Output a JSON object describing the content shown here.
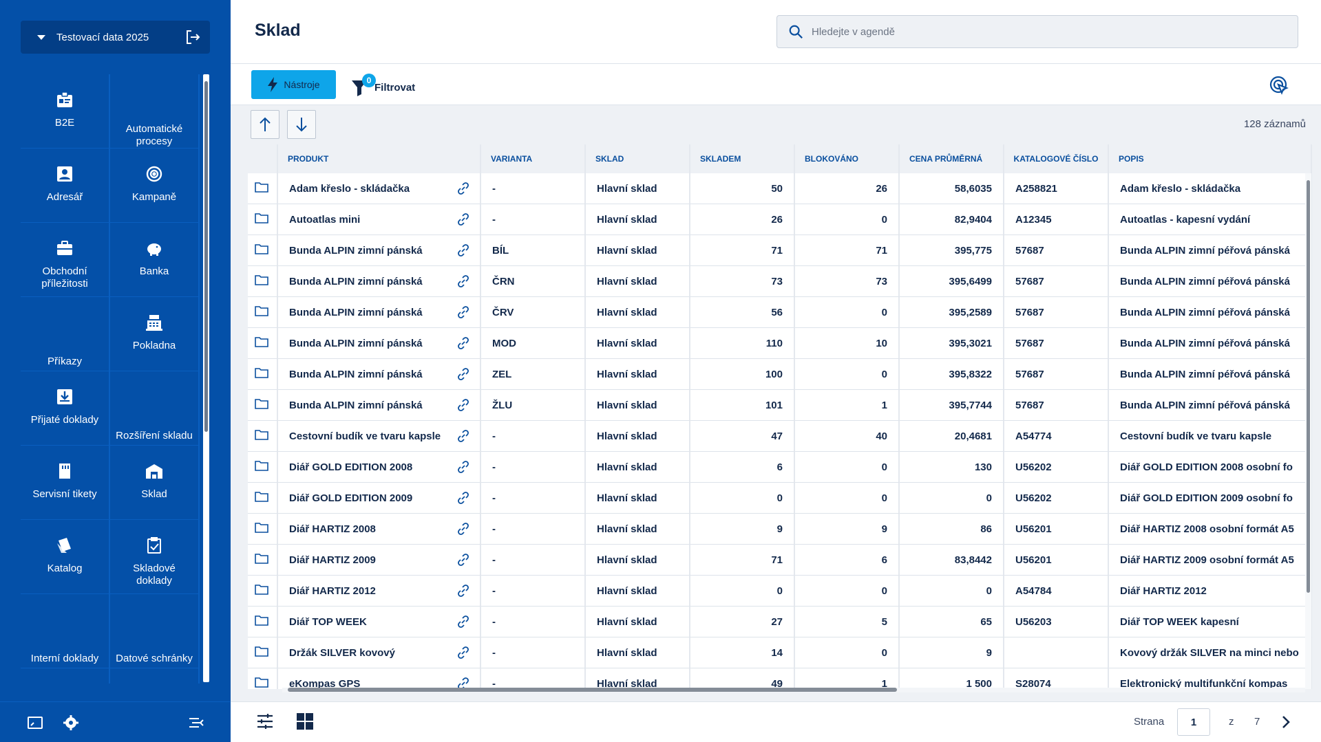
{
  "sidebar": {
    "org_name": "Testovací data 2025",
    "tiles": [
      {
        "label": "B2E",
        "icon": "id-badge-icon"
      },
      {
        "label": "Automatické procesy",
        "icon": ""
      },
      {
        "label": "Adresář",
        "icon": "contact-card-icon"
      },
      {
        "label": "Kampaně",
        "icon": "target-icon"
      },
      {
        "label": "Obchodní příležitosti",
        "icon": "briefcase-icon"
      },
      {
        "label": "Banka",
        "icon": "piggy-bank-icon"
      },
      {
        "label": "Příkazy",
        "icon": ""
      },
      {
        "label": "Pokladna",
        "icon": "cash-register-icon"
      },
      {
        "label": "Přijaté doklady",
        "icon": "inbox-icon"
      },
      {
        "label": "Rozšíření skladu",
        "icon": ""
      },
      {
        "label": "Servisní tikety",
        "icon": "ticket-icon"
      },
      {
        "label": "Sklad",
        "icon": "warehouse-icon"
      },
      {
        "label": "Katalog",
        "icon": "catalog-icon"
      },
      {
        "label": "Skladové doklady",
        "icon": "clipboard-check-icon"
      },
      {
        "label": "Interní doklady",
        "icon": ""
      },
      {
        "label": "Datové schránky",
        "icon": ""
      },
      {
        "label": "",
        "icon": ""
      },
      {
        "label": "",
        "icon": ""
      }
    ]
  },
  "header": {
    "title": "Sklad",
    "search_placeholder": "Hledejte v agendě"
  },
  "toolbar": {
    "tools_label": "Nástroje",
    "filter_label": "Filtrovat",
    "filter_count": "0"
  },
  "table": {
    "record_count": "128 záznamů",
    "columns": [
      "PRODUKT",
      "VARIANTA",
      "SKLAD",
      "SKLADEM",
      "BLOKOVÁNO",
      "CENA PRŮMĚRNÁ",
      "KATALOGOVÉ ČÍSLO",
      "POPIS"
    ],
    "rows": [
      {
        "produkt": "Adam křeslo - skládačka",
        "varianta": "-",
        "sklad": "Hlavní sklad",
        "skladem": "50",
        "blokovano": "26",
        "cena": "58,6035",
        "katalog": "A258821",
        "popis": "Adam křeslo - skládačka"
      },
      {
        "produkt": "Autoatlas mini",
        "varianta": "-",
        "sklad": "Hlavní sklad",
        "skladem": "26",
        "blokovano": "0",
        "cena": "82,9404",
        "katalog": "A12345",
        "popis": "Autoatlas - kapesní vydání"
      },
      {
        "produkt": "Bunda ALPIN zimní pánská",
        "varianta": "BÍL",
        "sklad": "Hlavní sklad",
        "skladem": "71",
        "blokovano": "71",
        "cena": "395,775",
        "katalog": "57687",
        "popis": "Bunda ALPIN zimní péřová pánská"
      },
      {
        "produkt": "Bunda ALPIN zimní pánská",
        "varianta": "ČRN",
        "sklad": "Hlavní sklad",
        "skladem": "73",
        "blokovano": "73",
        "cena": "395,6499",
        "katalog": "57687",
        "popis": "Bunda ALPIN zimní péřová pánská"
      },
      {
        "produkt": "Bunda ALPIN zimní pánská",
        "varianta": "ČRV",
        "sklad": "Hlavní sklad",
        "skladem": "56",
        "blokovano": "0",
        "cena": "395,2589",
        "katalog": "57687",
        "popis": "Bunda ALPIN zimní péřová pánská"
      },
      {
        "produkt": "Bunda ALPIN zimní pánská",
        "varianta": "MOD",
        "sklad": "Hlavní sklad",
        "skladem": "110",
        "blokovano": "10",
        "cena": "395,3021",
        "katalog": "57687",
        "popis": "Bunda ALPIN zimní péřová pánská"
      },
      {
        "produkt": "Bunda ALPIN zimní pánská",
        "varianta": "ZEL",
        "sklad": "Hlavní sklad",
        "skladem": "100",
        "blokovano": "0",
        "cena": "395,8322",
        "katalog": "57687",
        "popis": "Bunda ALPIN zimní péřová pánská"
      },
      {
        "produkt": "Bunda ALPIN zimní pánská",
        "varianta": "ŽLU",
        "sklad": "Hlavní sklad",
        "skladem": "101",
        "blokovano": "1",
        "cena": "395,7744",
        "katalog": "57687",
        "popis": "Bunda ALPIN zimní péřová pánská"
      },
      {
        "produkt": "Cestovní budík ve tvaru kapsle",
        "varianta": "-",
        "sklad": "Hlavní sklad",
        "skladem": "47",
        "blokovano": "40",
        "cena": "20,4681",
        "katalog": "A54774",
        "popis": "Cestovní budík ve tvaru kapsle"
      },
      {
        "produkt": "Diář GOLD EDITION 2008",
        "varianta": "-",
        "sklad": "Hlavní sklad",
        "skladem": "6",
        "blokovano": "0",
        "cena": "130",
        "katalog": "U56202",
        "popis": "Diář GOLD EDITION 2008 osobní fo"
      },
      {
        "produkt": "Diář GOLD EDITION 2009",
        "varianta": "-",
        "sklad": "Hlavní sklad",
        "skladem": "0",
        "blokovano": "0",
        "cena": "0",
        "katalog": "U56202",
        "popis": "Diář GOLD EDITION 2009 osobní fo"
      },
      {
        "produkt": "Diář HARTIZ 2008",
        "varianta": "-",
        "sklad": "Hlavní sklad",
        "skladem": "9",
        "blokovano": "9",
        "cena": "86",
        "katalog": "U56201",
        "popis": "Diář HARTIZ 2008 osobní formát A5"
      },
      {
        "produkt": "Diář HARTIZ 2009",
        "varianta": "-",
        "sklad": "Hlavní sklad",
        "skladem": "71",
        "blokovano": "6",
        "cena": "83,8442",
        "katalog": "U56201",
        "popis": "Diář HARTIZ 2009 osobní formát A5"
      },
      {
        "produkt": "Diář HARTIZ 2012",
        "varianta": "-",
        "sklad": "Hlavní sklad",
        "skladem": "0",
        "blokovano": "0",
        "cena": "0",
        "katalog": "A54784",
        "popis": "Diář HARTIZ 2012"
      },
      {
        "produkt": "Diář TOP WEEK",
        "varianta": "-",
        "sklad": "Hlavní sklad",
        "skladem": "27",
        "blokovano": "5",
        "cena": "65",
        "katalog": "U56203",
        "popis": "Diář TOP WEEK kapesní"
      },
      {
        "produkt": "Držák SILVER kovový",
        "varianta": "-",
        "sklad": "Hlavní sklad",
        "skladem": "14",
        "blokovano": "0",
        "cena": "9",
        "katalog": "",
        "popis": "Kovový držák SILVER na minci nebo"
      },
      {
        "produkt": "eKompas GPS",
        "varianta": "-",
        "sklad": "Hlavní sklad",
        "skladem": "49",
        "blokovano": "1",
        "cena": "1 500",
        "katalog": "S28074",
        "popis": "Elektronický multifunkční kompas"
      }
    ]
  },
  "pager": {
    "label": "Strana",
    "current": "1",
    "of": "z",
    "total": "7"
  },
  "colors": {
    "sidebar_bg": "#0450a8",
    "accent": "#0ea5e9",
    "header_text": "#0a4f9e"
  }
}
